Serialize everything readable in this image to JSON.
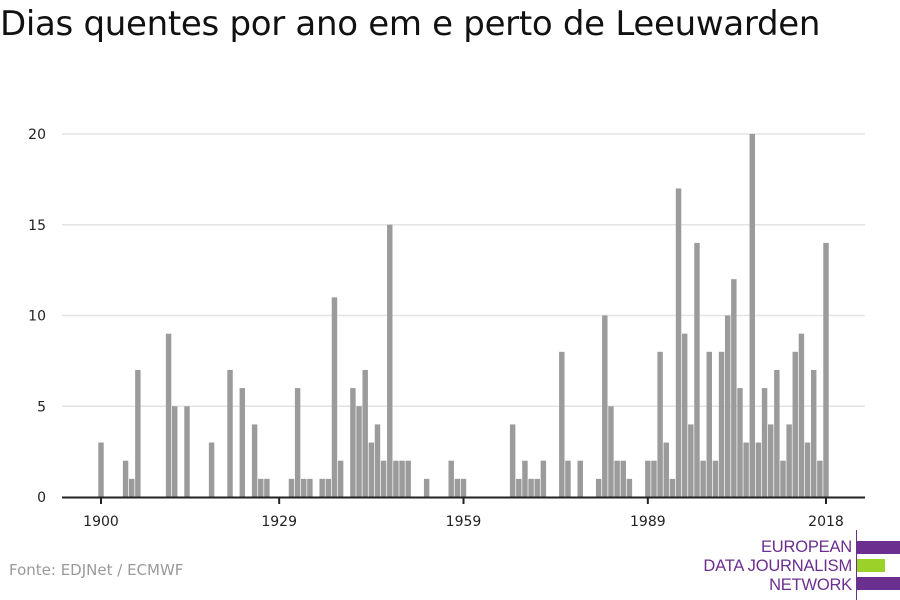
{
  "title": "Dias quentes por ano em e perto de Leeuwarden",
  "source": "Fonte: EDJNet / ECMWF",
  "logo": {
    "lines": [
      "EUROPEAN",
      "DATA JOURNALISM",
      "NETWORK"
    ],
    "colors": {
      "purple": "#6b2f8f",
      "green": "#9bd22a"
    }
  },
  "chart_data": {
    "type": "bar",
    "title": "Dias quentes por ano em e perto de Leeuwarden",
    "xlabel": "",
    "ylabel": "",
    "ylim": [
      0,
      20
    ],
    "xlim": [
      1900,
      2018
    ],
    "grid": true,
    "bar_color": "#9b9b9b",
    "y_ticks": [
      0,
      5,
      10,
      15,
      20
    ],
    "x_ticks": [
      1900,
      1929,
      1959,
      1989,
      2018
    ],
    "x": [
      1900,
      1901,
      1902,
      1903,
      1904,
      1905,
      1906,
      1907,
      1908,
      1909,
      1910,
      1911,
      1912,
      1913,
      1914,
      1915,
      1916,
      1917,
      1918,
      1919,
      1920,
      1921,
      1922,
      1923,
      1924,
      1925,
      1926,
      1927,
      1928,
      1929,
      1930,
      1931,
      1932,
      1933,
      1934,
      1935,
      1936,
      1937,
      1938,
      1939,
      1940,
      1941,
      1942,
      1943,
      1944,
      1945,
      1946,
      1947,
      1948,
      1949,
      1950,
      1951,
      1952,
      1953,
      1954,
      1955,
      1956,
      1957,
      1958,
      1959,
      1960,
      1961,
      1962,
      1963,
      1964,
      1965,
      1966,
      1967,
      1968,
      1969,
      1970,
      1971,
      1972,
      1973,
      1974,
      1975,
      1976,
      1977,
      1978,
      1979,
      1980,
      1981,
      1982,
      1983,
      1984,
      1985,
      1986,
      1987,
      1988,
      1989,
      1990,
      1991,
      1992,
      1993,
      1994,
      1995,
      1996,
      1997,
      1998,
      1999,
      2000,
      2001,
      2002,
      2003,
      2004,
      2005,
      2006,
      2007,
      2008,
      2009,
      2010,
      2011,
      2012,
      2013,
      2014,
      2015,
      2016,
      2017,
      2018
    ],
    "values": [
      3,
      0,
      0,
      0,
      2,
      1,
      7,
      0,
      0,
      0,
      0,
      9,
      5,
      0,
      5,
      0,
      0,
      0,
      3,
      0,
      0,
      7,
      0,
      6,
      0,
      4,
      1,
      1,
      0,
      0,
      0,
      1,
      6,
      1,
      1,
      0,
      1,
      1,
      11,
      2,
      0,
      6,
      5,
      7,
      3,
      4,
      2,
      15,
      2,
      2,
      2,
      0,
      0,
      1,
      0,
      0,
      0,
      2,
      1,
      1,
      0,
      0,
      0,
      0,
      0,
      0,
      0,
      4,
      1,
      2,
      1,
      1,
      2,
      0,
      0,
      8,
      2,
      0,
      2,
      0,
      0,
      1,
      10,
      5,
      2,
      2,
      1,
      0,
      0,
      2,
      2,
      8,
      3,
      1,
      17,
      9,
      4,
      14,
      2,
      8,
      2,
      8,
      10,
      12,
      6,
      3,
      20,
      3,
      6,
      4,
      7,
      2,
      4,
      8,
      9,
      3,
      7,
      2,
      14
    ]
  }
}
